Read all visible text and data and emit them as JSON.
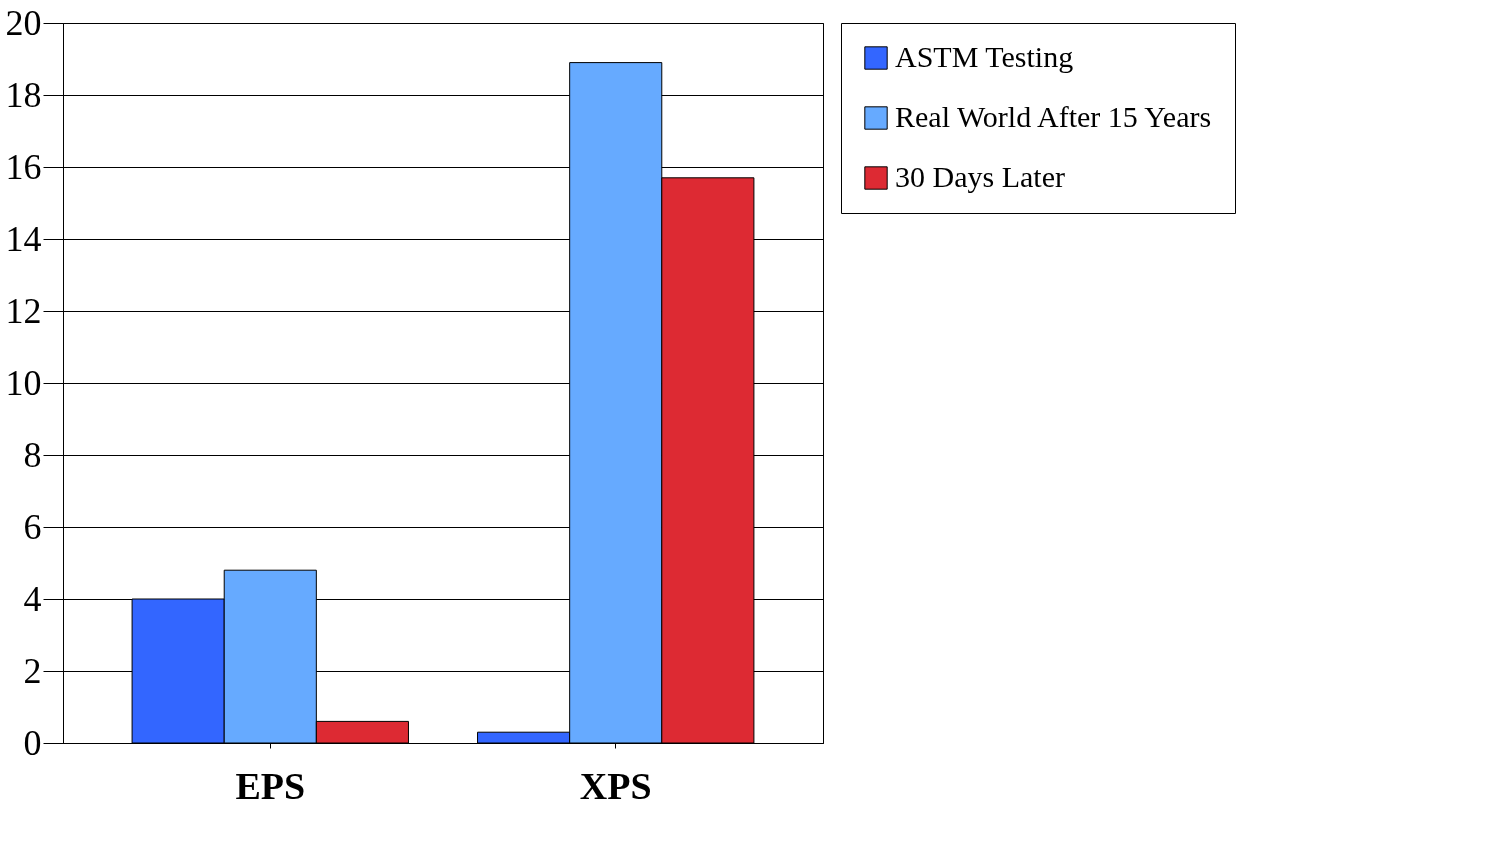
{
  "chart_data": {
    "type": "bar",
    "categories": [
      "EPS",
      "XPS"
    ],
    "series": [
      {
        "name": "ASTM Testing",
        "color": "#3366ff",
        "values": [
          4.0,
          0.3
        ]
      },
      {
        "name": "Real World After 15 Years",
        "color": "#66aaff",
        "values": [
          4.8,
          18.9
        ]
      },
      {
        "name": "30 Days Later",
        "color": "#dd2a33",
        "values": [
          0.6,
          15.7
        ]
      }
    ],
    "ylim": [
      0,
      20
    ],
    "yticks": [
      0,
      2,
      4,
      6,
      8,
      10,
      12,
      14,
      16,
      18,
      20
    ],
    "grid": "y",
    "legend": "right"
  }
}
